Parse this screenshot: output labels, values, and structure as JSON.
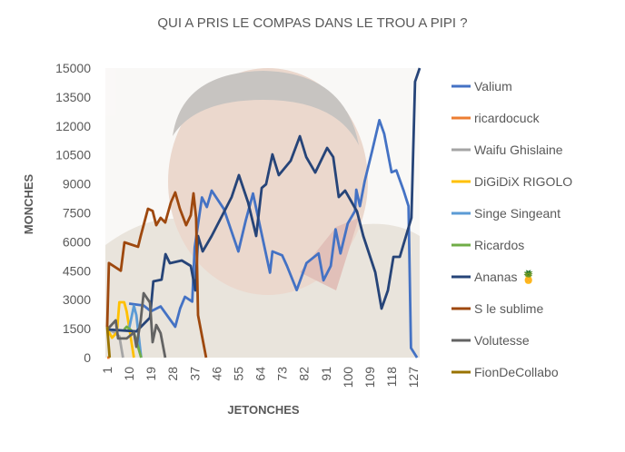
{
  "chart_data": {
    "type": "line",
    "title": "QUI A PRIS LE COMPAS DANS LE TROU A PIPI ?",
    "xlabel": "JETONCHES",
    "ylabel": "MONCHES",
    "ylim": [
      0,
      15000
    ],
    "xlim": [
      1,
      130
    ],
    "yticks": [
      "0",
      "1500",
      "3000",
      "4500",
      "6000",
      "7500",
      "9000",
      "10500",
      "12000",
      "13500",
      "15000"
    ],
    "xticks": [
      "1",
      "10",
      "19",
      "28",
      "37",
      "46",
      "55",
      "64",
      "73",
      "82",
      "91",
      "100",
      "109",
      "118",
      "127"
    ],
    "legend_position": "right",
    "grid": false,
    "series": [
      {
        "name": "Valium",
        "color": "#4472C4",
        "points": [
          [
            10,
            2800
          ],
          [
            16,
            2700
          ],
          [
            19,
            2400
          ],
          [
            23,
            2650
          ],
          [
            29,
            1600
          ],
          [
            31,
            2550
          ],
          [
            33,
            3150
          ],
          [
            36,
            2900
          ],
          [
            37,
            5700
          ],
          [
            40,
            8300
          ],
          [
            42,
            7800
          ],
          [
            44,
            8650
          ],
          [
            49,
            7700
          ],
          [
            55,
            5500
          ],
          [
            58,
            7100
          ],
          [
            61,
            8500
          ],
          [
            65,
            6150
          ],
          [
            68,
            4400
          ],
          [
            69,
            5500
          ],
          [
            73,
            5300
          ],
          [
            75,
            4750
          ],
          [
            79,
            3500
          ],
          [
            83,
            4900
          ],
          [
            88,
            5400
          ],
          [
            90,
            4000
          ],
          [
            93,
            4750
          ],
          [
            95,
            6650
          ],
          [
            97,
            5400
          ],
          [
            100,
            6950
          ],
          [
            103,
            7600
          ],
          [
            103.5,
            8700
          ],
          [
            105,
            7850
          ],
          [
            107,
            9150
          ],
          [
            110,
            10700
          ],
          [
            113,
            12300
          ],
          [
            115,
            11600
          ],
          [
            118,
            9600
          ],
          [
            120,
            9700
          ],
          [
            123,
            8650
          ],
          [
            125,
            7850
          ],
          [
            126,
            500
          ],
          [
            128.5,
            0
          ]
        ]
      },
      {
        "name": "ricardocuck",
        "color": "#ED7D31",
        "points": [
          [
            1,
            0
          ],
          [
            2,
            0
          ]
        ]
      },
      {
        "name": "Waifu Ghislaine",
        "color": "#A5A5A5",
        "points": [
          [
            1,
            1500
          ],
          [
            4,
            1300
          ],
          [
            6,
            1100
          ],
          [
            7.5,
            0
          ]
        ]
      },
      {
        "name": "DiGiDiX RIGOLO",
        "color": "#FFC000",
        "points": [
          [
            1,
            1500
          ],
          [
            3,
            1030
          ],
          [
            5,
            1300
          ],
          [
            6,
            2870
          ],
          [
            8,
            2870
          ],
          [
            9,
            2400
          ],
          [
            10,
            1600
          ],
          [
            12,
            0
          ]
        ]
      },
      {
        "name": "Singe Singeant",
        "color": "#5B9BD5",
        "points": [
          [
            10,
            1500
          ],
          [
            11,
            2100
          ],
          [
            12,
            2680
          ],
          [
            13,
            2200
          ],
          [
            15,
            0
          ]
        ]
      },
      {
        "name": "Ricardos",
        "color": "#70AD47",
        "points": [
          [
            8,
            1460
          ],
          [
            9,
            1600
          ],
          [
            12,
            1300
          ],
          [
            15,
            0
          ]
        ]
      },
      {
        "name": "Ananas 🍍",
        "color": "#264478",
        "points": [
          [
            1,
            1460
          ],
          [
            13,
            1360
          ],
          [
            18.6,
            2070
          ],
          [
            20,
            3950
          ],
          [
            23.4,
            4040
          ],
          [
            25,
            5360
          ],
          [
            26.8,
            4890
          ],
          [
            31.7,
            5030
          ],
          [
            35.4,
            4750
          ],
          [
            37.3,
            3480
          ],
          [
            38.4,
            6300
          ],
          [
            40.3,
            5500
          ],
          [
            44,
            6300
          ],
          [
            49.2,
            7570
          ],
          [
            52.2,
            8320
          ],
          [
            55.2,
            9450
          ],
          [
            59,
            8040
          ],
          [
            62.3,
            6300
          ],
          [
            64.6,
            8790
          ],
          [
            66.4,
            8980
          ],
          [
            69,
            10530
          ],
          [
            71.6,
            9450
          ],
          [
            76.5,
            10200
          ],
          [
            80.3,
            11470
          ],
          [
            82.9,
            10390
          ],
          [
            86.6,
            9590
          ],
          [
            91.5,
            10860
          ],
          [
            94,
            10390
          ],
          [
            96.3,
            8320
          ],
          [
            98.9,
            8650
          ],
          [
            103.8,
            7570
          ],
          [
            106.4,
            6300
          ],
          [
            111.3,
            4420
          ],
          [
            113.9,
            2540
          ],
          [
            116.5,
            3480
          ],
          [
            118.8,
            5220
          ],
          [
            121.4,
            5220
          ],
          [
            126.2,
            7240
          ],
          [
            127.7,
            14300
          ],
          [
            129.6,
            15000
          ]
        ]
      },
      {
        "name": "S le sublime",
        "color": "#9E480E",
        "points": [
          [
            1,
            1600
          ],
          [
            1.7,
            4900
          ],
          [
            6.6,
            4500
          ],
          [
            8.1,
            5970
          ],
          [
            13.7,
            5740
          ],
          [
            14.8,
            6300
          ],
          [
            17.8,
            7710
          ],
          [
            19.7,
            7600
          ],
          [
            21.2,
            6860
          ],
          [
            23,
            7240
          ],
          [
            24.9,
            7000
          ],
          [
            27.2,
            8040
          ],
          [
            29,
            8560
          ],
          [
            30.9,
            7710
          ],
          [
            33.5,
            6860
          ],
          [
            35.4,
            7380
          ],
          [
            36.5,
            8510
          ],
          [
            37.6,
            7240
          ],
          [
            38.4,
            2200
          ],
          [
            41.7,
            0
          ]
        ]
      },
      {
        "name": "Volutesse",
        "color": "#636363",
        "points": [
          [
            1,
            1450
          ],
          [
            4.5,
            1930
          ],
          [
            5.5,
            990
          ],
          [
            9,
            990
          ],
          [
            12,
            1300
          ],
          [
            13,
            560
          ],
          [
            14.8,
            1930
          ],
          [
            16,
            3340
          ],
          [
            18.6,
            2850
          ],
          [
            19.7,
            800
          ],
          [
            21.2,
            1690
          ],
          [
            23,
            1270
          ],
          [
            24.9,
            0
          ]
        ]
      },
      {
        "name": "FionDeCollabo",
        "color": "#997300",
        "points": [
          [
            1,
            1600
          ],
          [
            2,
            0
          ]
        ]
      }
    ]
  }
}
